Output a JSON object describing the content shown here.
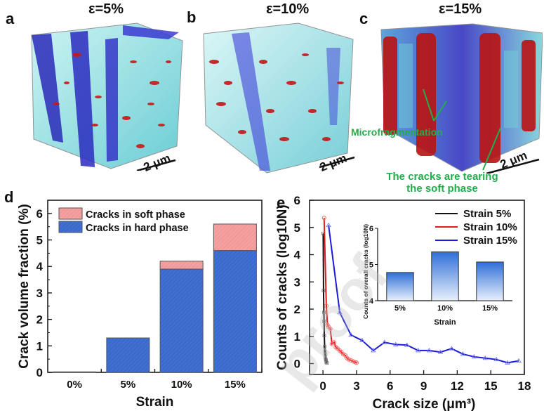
{
  "panels": {
    "a": {
      "label": "a",
      "strain_title": "ε=5%",
      "scale_bar": "2 μm"
    },
    "b": {
      "label": "b",
      "strain_title": "ε=10%",
      "scale_bar": "2 μm"
    },
    "c": {
      "label": "c",
      "strain_title": "ε=15%",
      "scale_bar": "2 μm",
      "annotations": [
        "Microfragmentation",
        "The cracks are tearing",
        "the soft phase"
      ]
    },
    "d": {
      "label": "d"
    },
    "e": {
      "label": "e"
    }
  },
  "colors": {
    "soft": "#f4a0a0",
    "hard": "#3f6fd0",
    "s5": "#111111",
    "s10": "#e21b1b",
    "s15": "#1a1ad8",
    "annotation": "#1fae4a"
  },
  "watermark": "Journal Pre-proof",
  "chart_data": [
    {
      "type": "bar",
      "stacked": true,
      "title": "",
      "xlabel": "Strain",
      "ylabel": "Crack volume fraction (%)",
      "categories": [
        "0%",
        "5%",
        "10%",
        "15%"
      ],
      "series": [
        {
          "name": "Cracks in hard phase",
          "values": [
            0.02,
            1.3,
            3.9,
            4.6
          ]
        },
        {
          "name": "Cracks in soft phase",
          "values": [
            0,
            0,
            0.3,
            1.0
          ]
        }
      ],
      "ylim": [
        0,
        6.5
      ],
      "yticks": [
        0,
        1,
        2,
        3,
        4,
        5,
        6
      ],
      "legend": "top-left"
    },
    {
      "type": "line",
      "title": "",
      "xlabel": "Crack size (μm³)",
      "ylabel": "Counts of cracks (log10N)",
      "xlim": [
        -1.2,
        18
      ],
      "ylim": [
        -0.4,
        6
      ],
      "xticks": [
        0,
        3,
        6,
        9,
        12,
        15,
        18
      ],
      "yticks": [
        0,
        1,
        2,
        3,
        4,
        5,
        6
      ],
      "legend": "top-right",
      "series": [
        {
          "name": "Strain 5%",
          "marker": "square",
          "x": [
            0.02,
            0.05,
            0.08,
            0.1,
            0.12,
            0.15,
            0.18,
            0.2,
            0.22,
            0.25,
            0.28,
            0.3,
            0.35
          ],
          "y": [
            4.78,
            2.68,
            1.88,
            1.55,
            1.03,
            0.62,
            0.45,
            0.32,
            0.22,
            0.15,
            0.1,
            0.05,
            0.02
          ]
        },
        {
          "name": "Strain 10%",
          "marker": "circle",
          "x": [
            0.1,
            0.3,
            0.4,
            0.5,
            0.65,
            0.8,
            1.0,
            1.15,
            1.3,
            1.5,
            1.65,
            1.8,
            2.0,
            2.15,
            2.3,
            2.5,
            2.7,
            2.9,
            3.0
          ],
          "y": [
            5.35,
            2.12,
            1.42,
            1.35,
            1.28,
            0.72,
            0.78,
            0.6,
            0.55,
            0.48,
            0.42,
            0.35,
            0.3,
            0.2,
            0.15,
            0.12,
            0.08,
            0.05,
            0.03
          ]
        },
        {
          "name": "Strain 15%",
          "marker": "triangle",
          "x": [
            0.5,
            1.5,
            2.5,
            3.5,
            4.5,
            5.5,
            6.5,
            7.5,
            8.5,
            9.5,
            10.5,
            11.5,
            12.5,
            13.5,
            14.5,
            15.5,
            16.5,
            17.5
          ],
          "y": [
            5.08,
            1.88,
            1.05,
            0.85,
            0.48,
            0.78,
            0.7,
            0.68,
            0.48,
            0.48,
            0.42,
            0.55,
            0.35,
            0.25,
            0.2,
            0.15,
            0.03,
            0.1
          ]
        }
      ]
    },
    {
      "type": "bar",
      "title": "inset",
      "xlabel": "Strain",
      "ylabel": "Counts of overall cracks (log10N)",
      "categories": [
        "5%",
        "10%",
        "15%"
      ],
      "values": [
        4.78,
        5.35,
        5.07
      ],
      "ylim": [
        4,
        6
      ],
      "yticks": [
        4,
        5,
        6
      ]
    }
  ]
}
